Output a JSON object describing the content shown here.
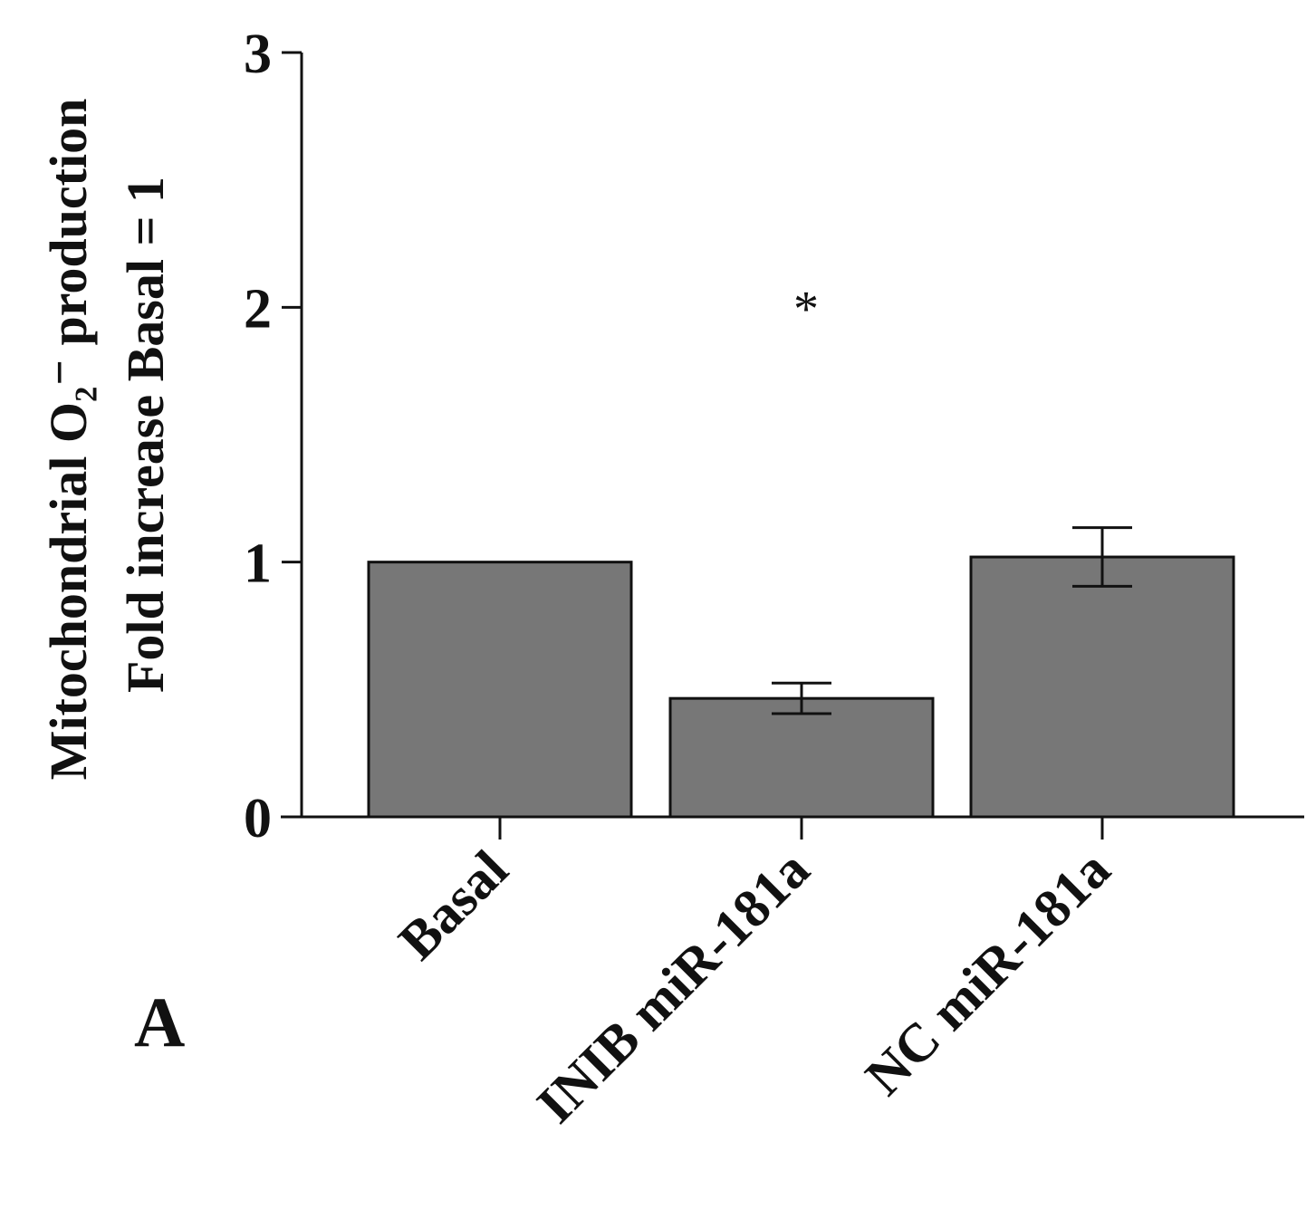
{
  "chart_data": {
    "type": "bar",
    "panel_label": "A",
    "ylabel_line1": "Mitochondrial O₂⁻ production",
    "ylabel_line2": "Fold increase Basal = 1",
    "ylim": [
      0,
      3
    ],
    "yticks": [
      "0",
      "1",
      "2",
      "3"
    ],
    "categories": [
      "Basal",
      "INIB miR-181a",
      "NC miR-181a"
    ],
    "values": [
      1.0,
      0.465,
      1.02
    ],
    "errors": [
      0.0,
      0.06,
      0.115
    ],
    "significance": [
      "",
      "*",
      ""
    ],
    "bar_color": "#777777",
    "grid": false
  }
}
